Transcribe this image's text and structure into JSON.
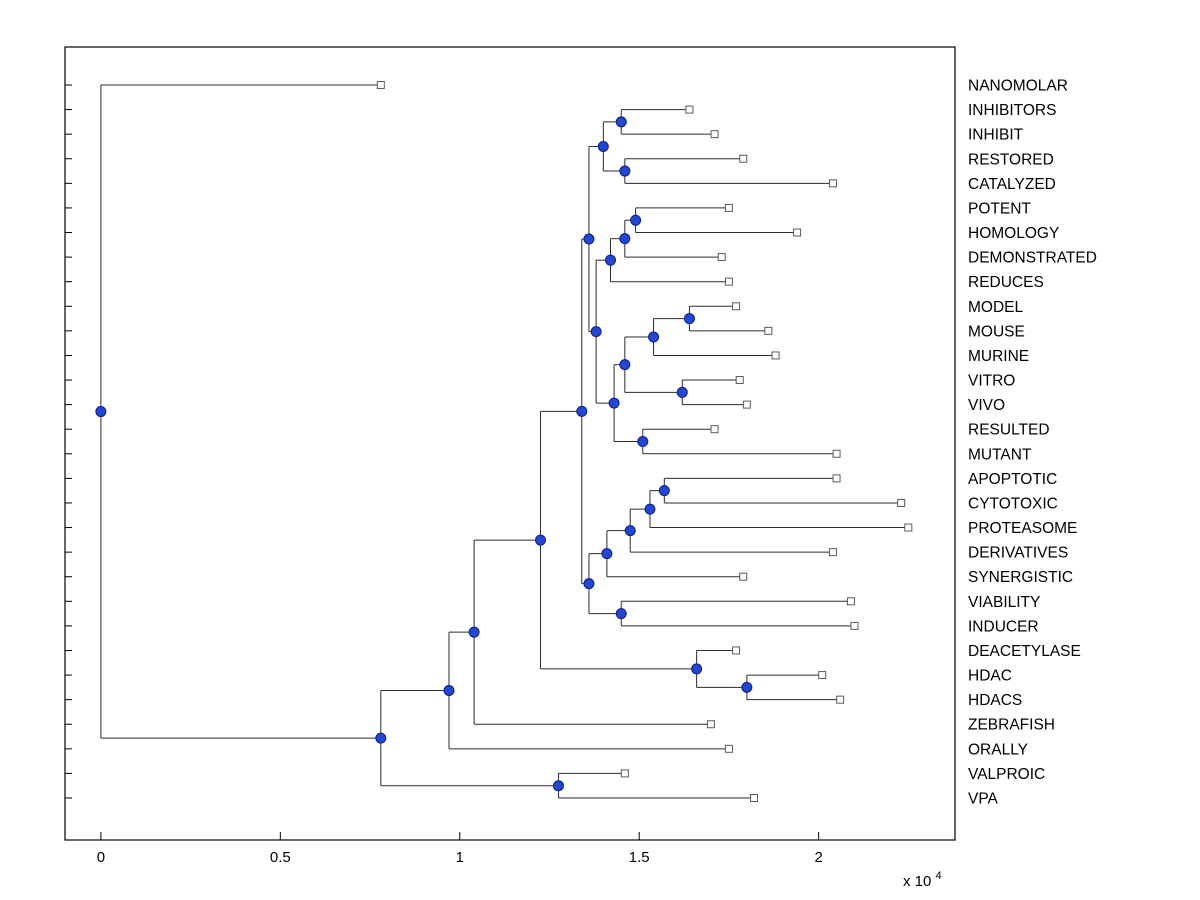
{
  "figure": {
    "background": "#ffffff",
    "title": ""
  },
  "style": {
    "branch_color": "#2b2b2b",
    "axis_color": "#000000",
    "label_color": "#000000",
    "internal_node": {
      "shape": "circle",
      "fill": "#2347cf",
      "stroke": "#0a1d86"
    },
    "leaf_node": {
      "shape": "square",
      "fill": "#ffffff",
      "stroke": "#5a5a5a"
    }
  },
  "chart_data": {
    "type": "dendrogram",
    "orientation": "horizontal, root at left, leaf labels on right",
    "title": "",
    "xlabel": "",
    "ylabel": "",
    "x_axis": {
      "xlim": [
        -1000,
        23800
      ],
      "tick_values": [
        0,
        5000,
        10000,
        15000,
        20000
      ],
      "tick_labels": [
        "0",
        "0.5",
        "1",
        "1.5",
        "2"
      ],
      "scale_label_base": "x 10",
      "scale_label_exponent": "4",
      "grid": false
    },
    "leaves": [
      {
        "label": "NANOMOLAR",
        "tip_distance": 7800
      },
      {
        "label": "INHIBITORS",
        "tip_distance": 16400
      },
      {
        "label": "INHIBIT",
        "tip_distance": 17100
      },
      {
        "label": "RESTORED",
        "tip_distance": 17900
      },
      {
        "label": "CATALYZED",
        "tip_distance": 20400
      },
      {
        "label": "POTENT",
        "tip_distance": 17500
      },
      {
        "label": "HOMOLOGY",
        "tip_distance": 19400
      },
      {
        "label": "DEMONSTRATED",
        "tip_distance": 17300
      },
      {
        "label": "REDUCES",
        "tip_distance": 17500
      },
      {
        "label": "MODEL",
        "tip_distance": 17700
      },
      {
        "label": "MOUSE",
        "tip_distance": 18600
      },
      {
        "label": "MURINE",
        "tip_distance": 18800
      },
      {
        "label": "VITRO",
        "tip_distance": 17800
      },
      {
        "label": "VIVO",
        "tip_distance": 18000
      },
      {
        "label": "RESULTED",
        "tip_distance": 17100
      },
      {
        "label": "MUTANT",
        "tip_distance": 20500
      },
      {
        "label": "APOPTOTIC",
        "tip_distance": 20500
      },
      {
        "label": "CYTOTOXIC",
        "tip_distance": 22300
      },
      {
        "label": "PROTEASOME",
        "tip_distance": 22500
      },
      {
        "label": "DERIVATIVES",
        "tip_distance": 20400
      },
      {
        "label": "SYNERGISTIC",
        "tip_distance": 17900
      },
      {
        "label": "VIABILITY",
        "tip_distance": 20900
      },
      {
        "label": "INDUCER",
        "tip_distance": 21000
      },
      {
        "label": "DEACETYLASE",
        "tip_distance": 17700
      },
      {
        "label": "HDAC",
        "tip_distance": 20100
      },
      {
        "label": "HDACS",
        "tip_distance": 20600
      },
      {
        "label": "ZEBRAFISH",
        "tip_distance": 17000
      },
      {
        "label": "ORALLY",
        "tip_distance": 17500
      },
      {
        "label": "VALPROIC",
        "tip_distance": 14600
      },
      {
        "label": "VPA",
        "tip_distance": 18200
      }
    ],
    "merges": [
      {
        "id": "N0",
        "children": [
          "L1",
          "L2"
        ],
        "distance": 14500
      },
      {
        "id": "N1",
        "children": [
          "L3",
          "L4"
        ],
        "distance": 14600
      },
      {
        "id": "N2",
        "children": [
          "N0",
          "N1"
        ],
        "distance": 14000
      },
      {
        "id": "N3",
        "children": [
          "L5",
          "L6"
        ],
        "distance": 14900
      },
      {
        "id": "N4",
        "children": [
          "N3",
          "L7"
        ],
        "distance": 14600
      },
      {
        "id": "N5",
        "children": [
          "N4",
          "L8"
        ],
        "distance": 14200
      },
      {
        "id": "N6",
        "children": [
          "L9",
          "L10"
        ],
        "distance": 16400
      },
      {
        "id": "N7",
        "children": [
          "N6",
          "L11"
        ],
        "distance": 15400
      },
      {
        "id": "N8",
        "children": [
          "L12",
          "L13"
        ],
        "distance": 16200
      },
      {
        "id": "N9",
        "children": [
          "N7",
          "N8"
        ],
        "distance": 14600
      },
      {
        "id": "N10",
        "children": [
          "L14",
          "L15"
        ],
        "distance": 15100
      },
      {
        "id": "N11",
        "children": [
          "N9",
          "N10"
        ],
        "distance": 14300
      },
      {
        "id": "N12",
        "children": [
          "N5",
          "N11"
        ],
        "distance": 13800
      },
      {
        "id": "N13",
        "children": [
          "N2",
          "N12"
        ],
        "distance": 13600
      },
      {
        "id": "N14",
        "children": [
          "L16",
          "L17"
        ],
        "distance": 15700
      },
      {
        "id": "N15",
        "children": [
          "N14",
          "L18"
        ],
        "distance": 15300
      },
      {
        "id": "N16",
        "children": [
          "N15",
          "L19"
        ],
        "distance": 14750
      },
      {
        "id": "N17",
        "children": [
          "N16",
          "L20"
        ],
        "distance": 14100
      },
      {
        "id": "N18",
        "children": [
          "L21",
          "L22"
        ],
        "distance": 14500
      },
      {
        "id": "N19",
        "children": [
          "N17",
          "N18"
        ],
        "distance": 13600
      },
      {
        "id": "N20",
        "children": [
          "N13",
          "N19"
        ],
        "distance": 13400
      },
      {
        "id": "N21",
        "children": [
          "L24",
          "L25"
        ],
        "distance": 18000
      },
      {
        "id": "N22",
        "children": [
          "L23",
          "N21"
        ],
        "distance": 16600
      },
      {
        "id": "N23",
        "children": [
          "N20",
          "N22"
        ],
        "distance": 12250
      },
      {
        "id": "N24",
        "children": [
          "N23",
          "L26"
        ],
        "distance": 10400
      },
      {
        "id": "N25",
        "children": [
          "N24",
          "L27"
        ],
        "distance": 9700
      },
      {
        "id": "N26",
        "children": [
          "L28",
          "L29"
        ],
        "distance": 12750
      },
      {
        "id": "N27",
        "children": [
          "N25",
          "N26"
        ],
        "distance": 7800
      },
      {
        "id": "N28",
        "children": [
          "L0",
          "N27"
        ],
        "distance": 0
      }
    ],
    "root_id": "N28"
  }
}
